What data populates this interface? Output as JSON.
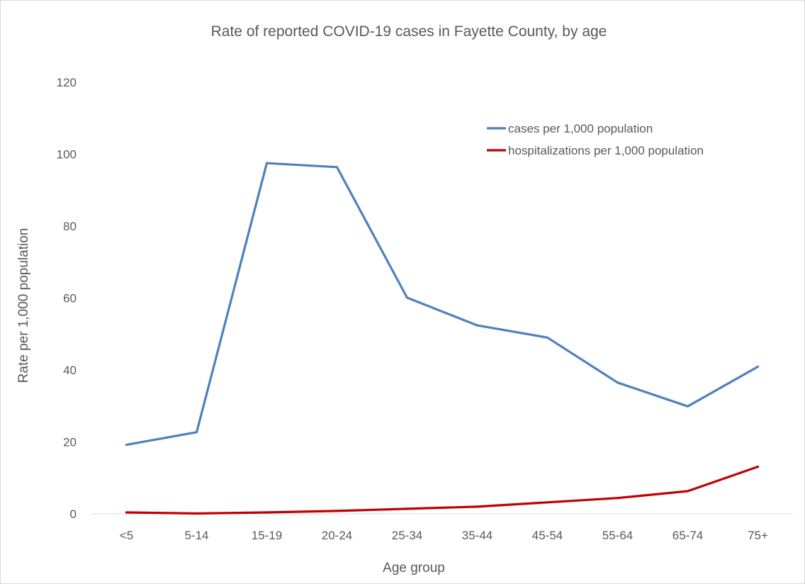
{
  "chart_data": {
    "type": "line",
    "title": "Rate of reported COVID-19 cases in Fayette County, by age",
    "xlabel": "Age group",
    "ylabel": "Rate per 1,000 population",
    "categories": [
      "<5",
      "5-14",
      "15-19",
      "20-24",
      "25-34",
      "35-44",
      "45-54",
      "55-64",
      "65-74",
      "75+"
    ],
    "ylim": [
      0,
      120
    ],
    "yticks": [
      0,
      20,
      40,
      60,
      80,
      100,
      120
    ],
    "grid": false,
    "legend_position": "top-right",
    "series": [
      {
        "name": "cases per 1,000 population",
        "color": "#4f81bd",
        "values": [
          19.2,
          22.7,
          97.5,
          96.4,
          60.1,
          52.4,
          49.0,
          36.5,
          29.9,
          40.9
        ]
      },
      {
        "name": "hospitalizations per 1,000 population",
        "color": "#c00000",
        "values": [
          0.4,
          0.1,
          0.4,
          0.8,
          1.4,
          2.0,
          3.2,
          4.4,
          6.3,
          13.1
        ]
      }
    ]
  }
}
